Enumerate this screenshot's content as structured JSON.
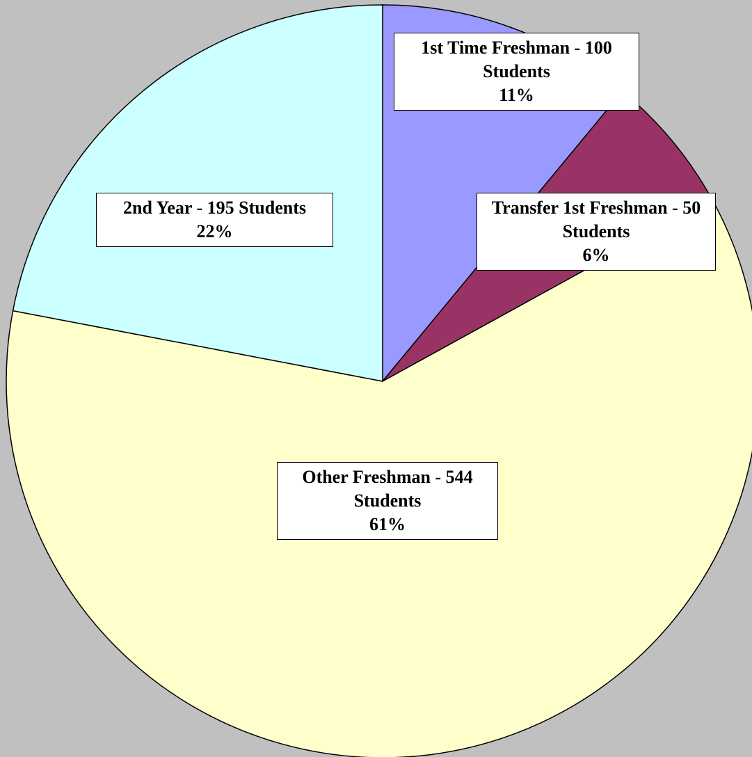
{
  "chart_data": {
    "type": "pie",
    "categories": [
      "1st Time Freshman - 100 Students",
      "Transfer 1st Freshman - 50 Students",
      "Other Freshman - 544 Students",
      "2nd Year - 195 Students"
    ],
    "values": [
      11,
      6,
      61,
      22
    ],
    "value_labels": [
      "11%",
      "6%",
      "61%",
      "22%"
    ],
    "colors": [
      "#9999ff",
      "#993366",
      "#ffffcc",
      "#ccffff"
    ]
  }
}
